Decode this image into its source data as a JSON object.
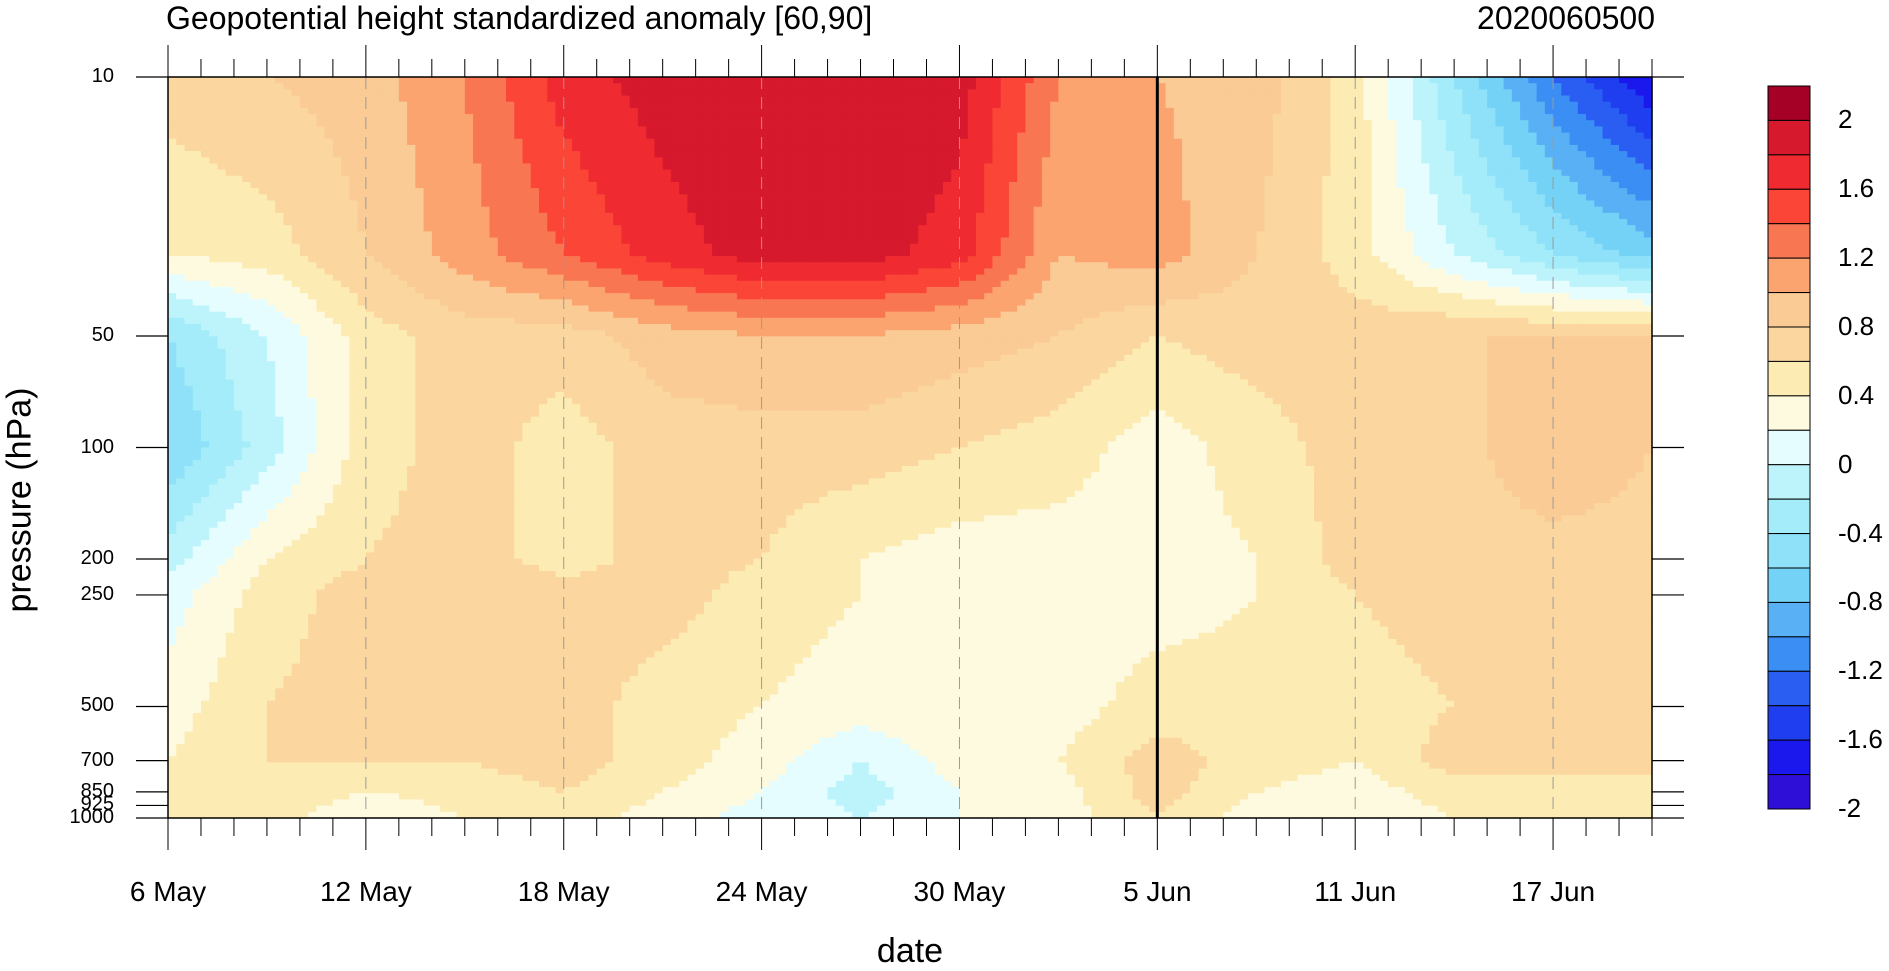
{
  "chart_data": {
    "type": "heatmap",
    "title": "Geopotential height standardized anomaly [60,90]",
    "subtitle": "2020060500",
    "xlabel": "date",
    "ylabel": "pressure (hPa)",
    "x_tick_labels": [
      "6 May",
      "12 May",
      "18 May",
      "24 May",
      "30 May",
      "5 Jun",
      "11 Jun",
      "17 Jun"
    ],
    "x_tick_days": [
      0,
      6,
      12,
      18,
      24,
      30,
      36,
      42
    ],
    "xlim_days": [
      0,
      45
    ],
    "y_tick_labels": [
      "10",
      "50",
      "100",
      "200",
      "250",
      "500",
      "700",
      "850",
      "925",
      "1000"
    ],
    "y_tick_values": [
      10,
      50,
      100,
      200,
      250,
      500,
      700,
      850,
      925,
      1000
    ],
    "ylim": [
      1000,
      10
    ],
    "y_scale": "log",
    "vertical_line_at": "5 Jun",
    "contour_levels": [
      -2.2,
      -2.0,
      -1.8,
      -1.6,
      -1.4,
      -1.2,
      -1.0,
      -0.8,
      -0.6,
      -0.4,
      -0.2,
      0,
      0.2,
      0.4,
      0.6,
      0.8,
      1.0,
      1.2,
      1.4,
      1.6,
      1.8,
      2.0,
      2.2
    ],
    "colorbar_labels": [
      "2",
      "1.6",
      "1.2",
      "0.8",
      "0.4",
      "0",
      "-0.4",
      "-0.8",
      "-1.2",
      "-1.6",
      "-2"
    ],
    "colorbar_colors": [
      "#a50026",
      "#d7192d",
      "#ef2a30",
      "#fa4537",
      "#f97653",
      "#fca46f",
      "#facb95",
      "#fbd69f",
      "#fcecb4",
      "#fefae0",
      "#e6fdff",
      "#bdf4fb",
      "#a4ecf9",
      "#8ee1f8",
      "#74d2f7",
      "#59b0f4",
      "#3b8ef3",
      "#2a5ef3",
      "#1f3ef0",
      "#1a18ec",
      "#2d0fd8"
    ],
    "grid": {
      "levels_hPa": [
        10,
        30,
        50,
        100,
        200,
        250,
        500,
        700,
        850,
        1000
      ],
      "days": [
        0,
        3,
        6,
        9,
        12,
        15,
        18,
        21,
        24,
        27,
        30,
        33,
        36,
        39,
        42,
        45
      ],
      "z": [
        [
          0.5,
          0.6,
          0.7,
          1.0,
          1.5,
          1.7,
          1.8,
          1.8,
          1.7,
          1.0,
          0.8,
          0.7,
          0.3,
          -0.6,
          -1.4,
          -2.0
        ],
        [
          0.2,
          0.3,
          0.6,
          0.9,
          1.2,
          1.5,
          1.7,
          1.7,
          1.5,
          0.8,
          0.9,
          0.6,
          0.3,
          -0.2,
          -0.6,
          -0.9
        ],
        [
          -0.6,
          -0.2,
          0.3,
          0.5,
          0.5,
          0.7,
          0.8,
          0.8,
          0.7,
          0.6,
          0.4,
          0.5,
          0.5,
          0.6,
          0.6,
          0.6
        ],
        [
          -0.8,
          -0.3,
          0.3,
          0.5,
          0.3,
          0.5,
          0.5,
          0.5,
          0.4,
          0.3,
          0.1,
          0.3,
          0.5,
          0.5,
          0.8,
          0.6
        ],
        [
          -0.3,
          0.2,
          0.4,
          0.5,
          0.3,
          0.5,
          0.4,
          0.2,
          0.1,
          0.1,
          0.1,
          0.2,
          0.5,
          0.5,
          0.5,
          0.5
        ],
        [
          -0.1,
          0.3,
          0.5,
          0.6,
          0.5,
          0.5,
          0.3,
          0.2,
          0.1,
          0.1,
          0.1,
          0.2,
          0.4,
          0.5,
          0.5,
          0.5
        ],
        [
          0.1,
          0.4,
          0.5,
          0.5,
          0.5,
          0.3,
          0.2,
          0.1,
          0.2,
          0.1,
          0.3,
          0.3,
          0.3,
          0.4,
          0.4,
          0.4
        ],
        [
          0.2,
          0.4,
          0.4,
          0.4,
          0.5,
          0.3,
          0.1,
          -0.2,
          0.1,
          0.2,
          0.5,
          0.3,
          0.2,
          0.5,
          0.5,
          0.5
        ],
        [
          0.2,
          0.4,
          0.2,
          0.3,
          0.4,
          0.2,
          0.0,
          -0.3,
          0.0,
          0.1,
          0.5,
          0.2,
          0.1,
          0.3,
          0.3,
          0.3
        ],
        [
          0.2,
          0.3,
          0.0,
          0.2,
          0.3,
          0.1,
          -0.1,
          -0.2,
          0.0,
          0.1,
          0.4,
          0.1,
          0.0,
          0.2,
          0.2,
          0.2
        ]
      ]
    }
  }
}
